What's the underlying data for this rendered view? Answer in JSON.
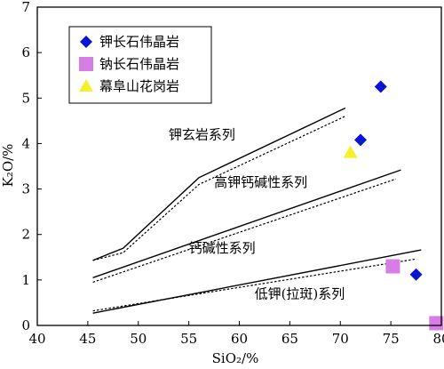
{
  "chart_data": {
    "type": "scatter",
    "xlabel": "SiO₂/%",
    "ylabel": "K₂O/%",
    "xlim": [
      40,
      80
    ],
    "ylim": [
      0,
      7
    ],
    "xticks": [
      "40",
      "45",
      "50",
      "55",
      "60",
      "65",
      "70",
      "75",
      "80"
    ],
    "yticks": [
      "0",
      "1",
      "2",
      "3",
      "4",
      "5",
      "6",
      "7"
    ],
    "grid": false,
    "legend_position": "top-left",
    "series": [
      {
        "name": "钾长石伟晶岩",
        "marker": "diamond",
        "color": "#0a14d2",
        "points": [
          [
            74,
            5.25
          ],
          [
            72,
            4.08
          ],
          [
            77.5,
            1.12
          ]
        ]
      },
      {
        "name": "钠长石伟晶岩",
        "marker": "square",
        "color": "#d77ee6",
        "points": [
          [
            75.2,
            1.3
          ],
          [
            79.5,
            0.05
          ]
        ]
      },
      {
        "name": "幕阜山花岗岩",
        "marker": "triangle",
        "color": "#f4f02a",
        "points": [
          [
            71,
            3.8
          ]
        ]
      }
    ],
    "boundaries": [
      {
        "style": "solid",
        "points": [
          [
            45.5,
            1.43
          ],
          [
            48.5,
            1.7
          ],
          [
            56,
            3.25
          ],
          [
            70.5,
            4.78
          ]
        ]
      },
      {
        "style": "dotted",
        "points": [
          [
            45.5,
            1.43
          ],
          [
            48.5,
            1.6
          ],
          [
            56,
            3.1
          ],
          [
            70.5,
            4.6
          ]
        ]
      },
      {
        "style": "solid",
        "points": [
          [
            45.5,
            1.05
          ],
          [
            76,
            3.42
          ]
        ]
      },
      {
        "style": "dotted",
        "points": [
          [
            45.5,
            0.95
          ],
          [
            75.5,
            3.22
          ]
        ]
      },
      {
        "style": "solid",
        "points": [
          [
            45.5,
            0.27
          ],
          [
            78,
            1.66
          ]
        ]
      },
      {
        "style": "dotted",
        "points": [
          [
            45.5,
            0.32
          ],
          [
            77.5,
            1.46
          ]
        ]
      }
    ],
    "region_labels": [
      {
        "text": "钾玄岩系列",
        "x": 53,
        "y": 4.1
      },
      {
        "text": "高钾钙碱性系列",
        "x": 57.5,
        "y": 3.05
      },
      {
        "text": "钙碱性系列",
        "x": 55,
        "y": 1.6
      },
      {
        "text": "低钾(拉斑)系列",
        "x": 61.5,
        "y": 0.6
      }
    ]
  }
}
